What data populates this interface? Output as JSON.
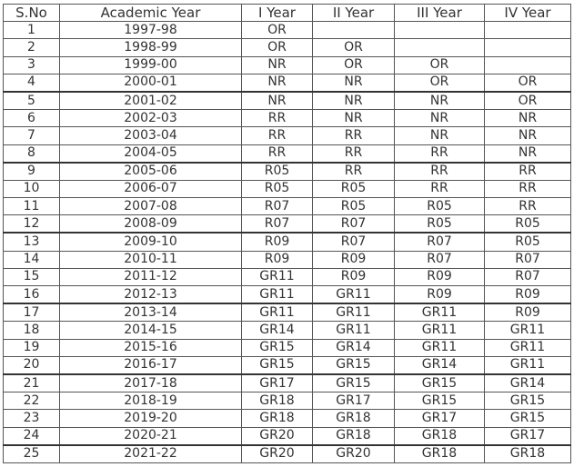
{
  "table": {
    "headers": [
      "S.No",
      "Academic Year",
      "I Year",
      "II Year",
      "III Year",
      "IV Year"
    ],
    "rows": [
      [
        "1",
        "1997-98",
        "OR",
        "",
        "",
        ""
      ],
      [
        "2",
        "1998-99",
        "OR",
        "OR",
        "",
        ""
      ],
      [
        "3",
        "1999-00",
        "NR",
        "OR",
        "OR",
        ""
      ],
      [
        "4",
        "2000-01",
        "NR",
        "NR",
        "OR",
        "OR"
      ],
      [
        "5",
        "2001-02",
        "NR",
        "NR",
        "NR",
        "OR"
      ],
      [
        "6",
        "2002-03",
        "RR",
        "NR",
        "NR",
        "NR"
      ],
      [
        "7",
        "2003-04",
        "RR",
        "RR",
        "NR",
        "NR"
      ],
      [
        "8",
        "2004-05",
        "RR",
        "RR",
        "RR",
        "NR"
      ],
      [
        "9",
        "2005-06",
        "R05",
        "RR",
        "RR",
        "RR"
      ],
      [
        "10",
        "2006-07",
        "R05",
        "R05",
        "RR",
        "RR"
      ],
      [
        "11",
        "2007-08",
        "R07",
        "R05",
        "R05",
        "RR"
      ],
      [
        "12",
        "2008-09",
        "R07",
        "R07",
        "R05",
        "R05"
      ],
      [
        "13",
        "2009-10",
        "R09",
        "R07",
        "R07",
        "R05"
      ],
      [
        "14",
        "2010-11",
        "R09",
        "R09",
        "R07",
        "R07"
      ],
      [
        "15",
        "2011-12",
        "GR11",
        "R09",
        "R09",
        "R07"
      ],
      [
        "16",
        "2012-13",
        "GR11",
        "GR11",
        "R09",
        "R09"
      ],
      [
        "17",
        "2013-14",
        "GR11",
        "GR11",
        "GR11",
        "R09"
      ],
      [
        "18",
        "2014-15",
        "GR14",
        "GR11",
        "GR11",
        "GR11"
      ],
      [
        "19",
        "2015-16",
        "GR15",
        "GR14",
        "GR11",
        "GR11"
      ],
      [
        "20",
        "2016-17",
        "GR15",
        "GR15",
        "GR14",
        "GR11"
      ],
      [
        "21",
        "2017-18",
        "GR17",
        "GR15",
        "GR15",
        "GR14"
      ],
      [
        "22",
        "2018-19",
        "GR18",
        "GR17",
        "GR15",
        "GR15"
      ],
      [
        "23",
        "2019-20",
        "GR18",
        "GR18",
        "GR17",
        "GR15"
      ],
      [
        "24",
        "2020-21",
        "GR20",
        "GR18",
        "GR18",
        "GR17"
      ],
      [
        "25",
        "2021-22",
        "GR20",
        "GR20",
        "GR18",
        "GR18"
      ]
    ]
  },
  "colors": {
    "text": "#333333",
    "border": "#555555",
    "background": "#ffffff"
  }
}
